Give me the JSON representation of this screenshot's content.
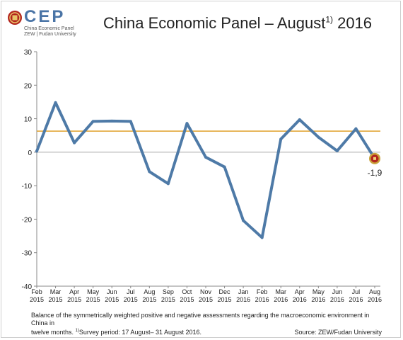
{
  "logo": {
    "text": "CEP",
    "subtitle_line1": "China Economic Panel",
    "subtitle_line2": "ZEW | Fudan University"
  },
  "header": {
    "title_main": "China Economic Panel – August",
    "title_sup": "1)",
    "title_year": " 2016"
  },
  "caption": {
    "line1": "Balance of the symmetrically weighted positive and negative assessments regarding the macroeconomic environment in China in",
    "line2": "twelve months.",
    "footnote_sup": "1)",
    "footnote": "Survey period: 17 August– 31 August 2016.",
    "source": "Source: ZEW/Fudan University"
  },
  "chart_data": {
    "type": "line",
    "categories": [
      [
        "Feb",
        "2015"
      ],
      [
        "Mar",
        "2015"
      ],
      [
        "Apr",
        "2015"
      ],
      [
        "May",
        "2015"
      ],
      [
        "Jun",
        "2015"
      ],
      [
        "Jul",
        "2015"
      ],
      [
        "Aug",
        "2015"
      ],
      [
        "Sep",
        "2015"
      ],
      [
        "Oct",
        "2015"
      ],
      [
        "Nov",
        "2015"
      ],
      [
        "Dec",
        "2015"
      ],
      [
        "Jan",
        "2016"
      ],
      [
        "Feb",
        "2016"
      ],
      [
        "Mar",
        "2016"
      ],
      [
        "Apr",
        "2016"
      ],
      [
        "May",
        "2016"
      ],
      [
        "Jun",
        "2016"
      ],
      [
        "Jul",
        "2016"
      ],
      [
        "Aug",
        "2016"
      ]
    ],
    "values": [
      0.3,
      14.8,
      2.8,
      9.2,
      9.3,
      9.2,
      -5.8,
      -9.4,
      8.6,
      -1.5,
      -4.4,
      -20.4,
      -25.5,
      3.9,
      9.7,
      4.5,
      0.4,
      7.0,
      -1.9
    ],
    "reference_line": 6.3,
    "last_label": "-1,9",
    "ylim": [
      -40,
      30
    ],
    "yticks": [
      30,
      20,
      10,
      0,
      -10,
      -20,
      -30,
      -40
    ],
    "colors": {
      "line": "#4e7aa7",
      "reference": "#e0a12a",
      "zero": "#aaaaaa",
      "marker_outer": "#c8a23a",
      "marker_inner": "#b3261e"
    }
  }
}
